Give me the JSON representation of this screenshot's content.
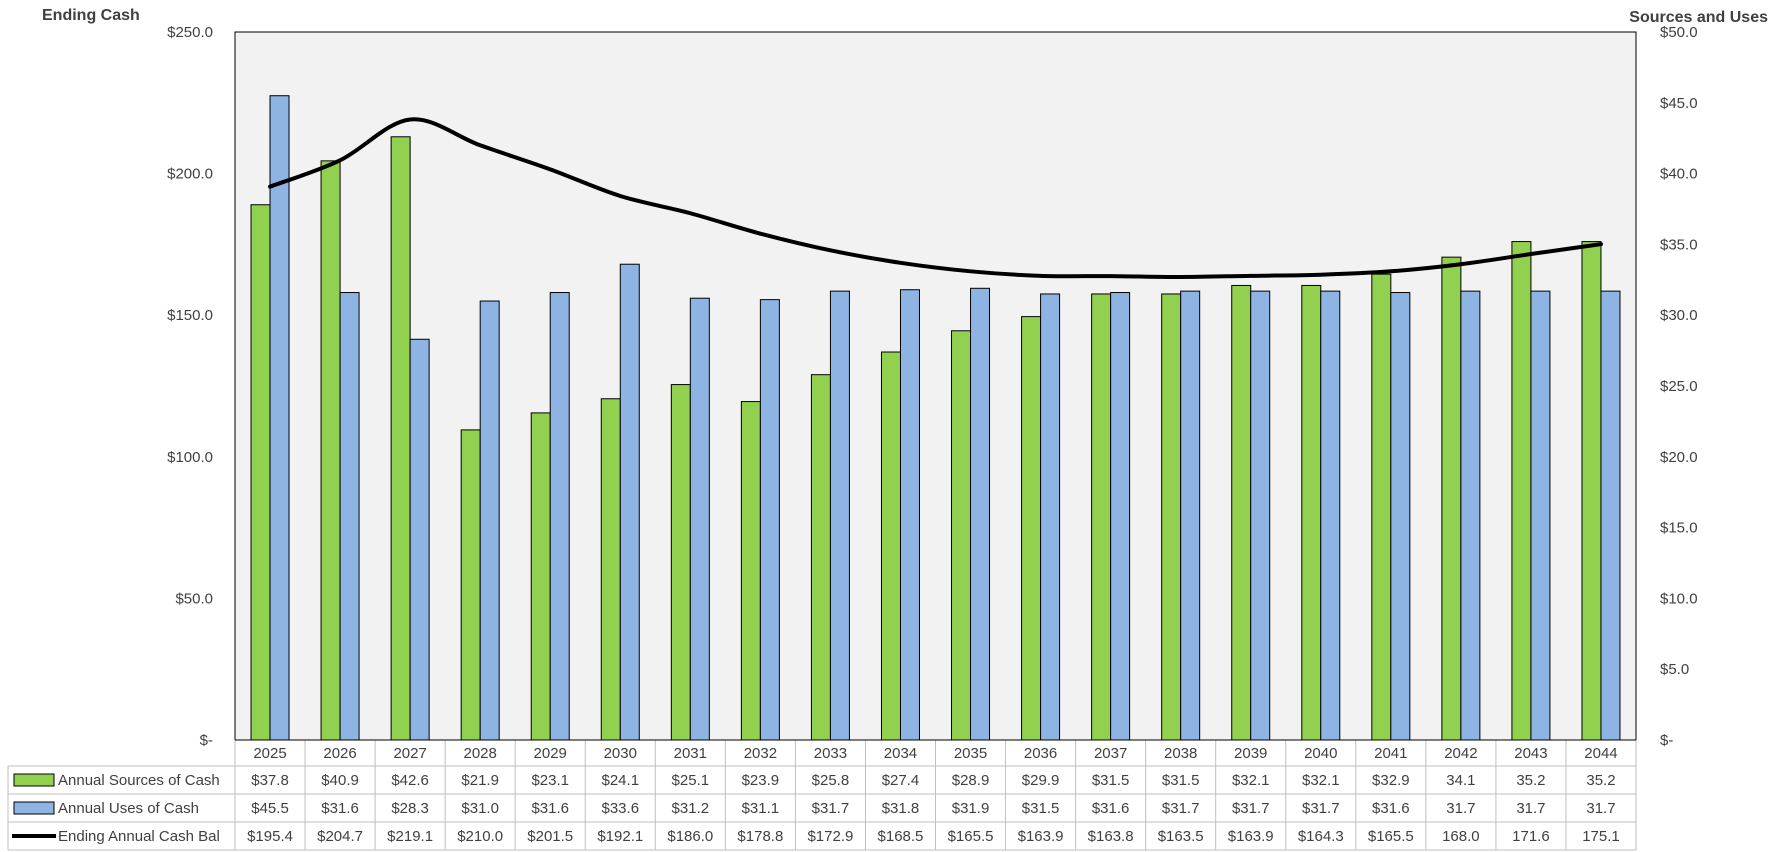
{
  "chart_data": {
    "type": "bar",
    "left_axis_title": "Ending Cash",
    "right_axis_title": "Sources and Uses",
    "left_ticks": [
      "$-",
      "$50.0",
      "$100.0",
      "$150.0",
      "$200.0",
      "$250.0"
    ],
    "right_ticks": [
      "$-",
      "$5.0",
      "$10.0",
      "$15.0",
      "$20.0",
      "$25.0",
      "$30.0",
      "$35.0",
      "$40.0",
      "$45.0",
      "$50.0"
    ],
    "left_ylim": [
      0,
      250
    ],
    "right_ylim": [
      0,
      50
    ],
    "categories": [
      "2025",
      "2026",
      "2027",
      "2028",
      "2029",
      "2030",
      "2031",
      "2032",
      "2033",
      "2034",
      "2035",
      "2036",
      "2037",
      "2038",
      "2039",
      "2040",
      "2041",
      "2042",
      "2043",
      "2044"
    ],
    "series": [
      {
        "name": "Annual Sources of Cash",
        "type": "bar",
        "axis": "right",
        "color": "#92d050",
        "values": [
          37.8,
          40.9,
          42.6,
          21.9,
          23.1,
          24.1,
          25.1,
          23.9,
          25.8,
          27.4,
          28.9,
          29.9,
          31.5,
          31.5,
          32.1,
          32.1,
          32.9,
          34.1,
          35.2,
          35.2
        ],
        "labels": [
          "$37.8",
          "$40.9",
          "$42.6",
          "$21.9",
          "$23.1",
          "$24.1",
          "$25.1",
          "$23.9",
          "$25.8",
          "$27.4",
          "$28.9",
          "$29.9",
          "$31.5",
          "$31.5",
          "$32.1",
          "$32.1",
          "$32.9",
          "34.1",
          "35.2",
          "35.2"
        ]
      },
      {
        "name": "Annual Uses of Cash",
        "type": "bar",
        "axis": "right",
        "color": "#8eb4e3",
        "values": [
          45.5,
          31.6,
          28.3,
          31.0,
          31.6,
          33.6,
          31.2,
          31.1,
          31.7,
          31.8,
          31.9,
          31.5,
          31.6,
          31.7,
          31.7,
          31.7,
          31.6,
          31.7,
          31.7,
          31.7
        ],
        "labels": [
          "$45.5",
          "$31.6",
          "$28.3",
          "$31.0",
          "$31.6",
          "$33.6",
          "$31.2",
          "$31.1",
          "$31.7",
          "$31.8",
          "$31.9",
          "$31.5",
          "$31.6",
          "$31.7",
          "$31.7",
          "$31.7",
          "$31.6",
          "31.7",
          "31.7",
          "31.7"
        ]
      },
      {
        "name": "Ending Annual Cash Bal",
        "type": "line",
        "axis": "left",
        "color": "#000000",
        "values": [
          195.4,
          204.7,
          219.1,
          210.0,
          201.5,
          192.1,
          186.0,
          178.8,
          172.9,
          168.5,
          165.5,
          163.9,
          163.8,
          163.5,
          163.9,
          164.3,
          165.5,
          168.0,
          171.6,
          175.1
        ],
        "labels": [
          "$195.4",
          "$204.7",
          "$219.1",
          "$210.0",
          "$201.5",
          "$192.1",
          "$186.0",
          "$178.8",
          "$172.9",
          "$168.5",
          "$165.5",
          "$163.9",
          "$163.8",
          "$163.5",
          "$163.9",
          "$164.3",
          "$165.5",
          "168.0",
          "171.6",
          "175.1"
        ]
      }
    ],
    "plot_background": "#f2f2f2",
    "data_table": true,
    "grid": false
  }
}
